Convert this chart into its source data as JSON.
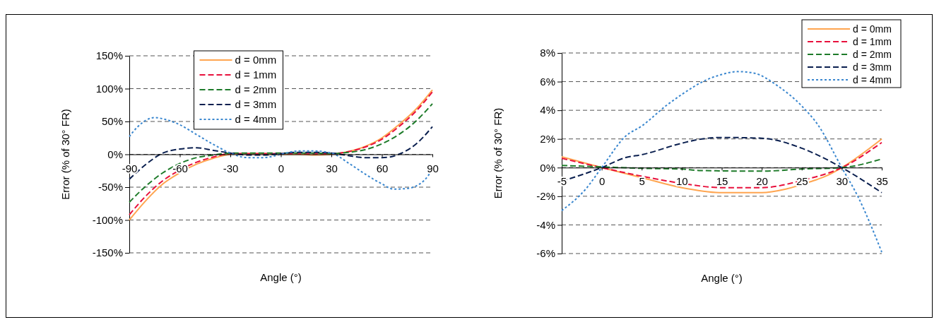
{
  "chart_data": [
    {
      "type": "line",
      "xlabel": "Angle (°)",
      "ylabel": "Error (% of 30° FR)",
      "xlim": [
        -90,
        90
      ],
      "xticks": [
        -90,
        -60,
        -30,
        0,
        30,
        60,
        90
      ],
      "ylim": [
        -150,
        150
      ],
      "yticks": [
        {
          "value": -150,
          "label": "-150%"
        },
        {
          "value": -100,
          "label": "-100%"
        },
        {
          "value": -50,
          "label": "-50%"
        },
        {
          "value": 0,
          "label": "0%"
        },
        {
          "value": 50,
          "label": "50%"
        },
        {
          "value": 100,
          "label": "100%"
        },
        {
          "value": 150,
          "label": "150%"
        }
      ],
      "grid": "y",
      "legend": "top",
      "marker": "none",
      "series": [
        {
          "name": "d = 0mm",
          "color": "#ffa550",
          "line_style": "solid",
          "x": [
            -90,
            -80,
            -70,
            -60,
            -50,
            -40,
            -30,
            -20,
            -10,
            0,
            10,
            20,
            30,
            40,
            50,
            60,
            70,
            80,
            90
          ],
          "values": [
            -100,
            -70,
            -45,
            -28,
            -15,
            -6,
            0,
            1,
            1,
            0,
            0,
            -1,
            0,
            4,
            12,
            25,
            45,
            68,
            98
          ]
        },
        {
          "name": "d = 1mm",
          "color": "#e8103c",
          "line_style": "dashed",
          "x": [
            -90,
            -80,
            -70,
            -60,
            -50,
            -40,
            -30,
            -20,
            -10,
            0,
            10,
            20,
            30,
            40,
            50,
            60,
            70,
            80,
            90
          ],
          "values": [
            -92,
            -63,
            -40,
            -24,
            -12,
            -4,
            1,
            1,
            1,
            1,
            1,
            1,
            1,
            4,
            11,
            23,
            42,
            65,
            95
          ]
        },
        {
          "name": "d = 2mm",
          "color": "#1e7b2a",
          "line_style": "dashed",
          "x": [
            -90,
            -80,
            -70,
            -60,
            -50,
            -40,
            -30,
            -20,
            -10,
            0,
            10,
            20,
            30,
            40,
            50,
            60,
            70,
            80,
            90
          ],
          "values": [
            -73,
            -48,
            -28,
            -14,
            -5,
            -1,
            2,
            2,
            2,
            2,
            2,
            2,
            1,
            3,
            7,
            16,
            30,
            50,
            77
          ]
        },
        {
          "name": "d = 3mm",
          "color": "#0a1f4f",
          "line_style": "dashed",
          "x": [
            -90,
            -80,
            -70,
            -60,
            -50,
            -40,
            -30,
            -20,
            -10,
            0,
            10,
            20,
            30,
            40,
            50,
            60,
            65,
            70,
            80,
            90
          ],
          "values": [
            -38,
            -15,
            2,
            8,
            10,
            6,
            2,
            -1,
            -1,
            1,
            3,
            3,
            2,
            -2,
            -5,
            -5,
            -4,
            0,
            15,
            42
          ]
        },
        {
          "name": "d = 4mm",
          "color": "#3a87cf",
          "line_style": "dotted",
          "x": [
            -90,
            -85,
            -80,
            -75,
            -70,
            -60,
            -50,
            -40,
            -30,
            -20,
            -10,
            0,
            10,
            20,
            30,
            40,
            50,
            60,
            67,
            75,
            85,
            90
          ],
          "values": [
            27,
            42,
            52,
            56,
            54,
            45,
            30,
            15,
            2,
            -5,
            -5,
            0,
            5,
            5,
            2,
            -13,
            -30,
            -45,
            -53,
            -52,
            -40,
            -23
          ]
        }
      ]
    },
    {
      "type": "line",
      "xlabel": "Angle (°)",
      "ylabel": "Error (% of 30° FR)",
      "xlim": [
        -5,
        35
      ],
      "xticks": [
        -5,
        0,
        5,
        10,
        15,
        20,
        25,
        30,
        35
      ],
      "ylim": [
        -6,
        8
      ],
      "yticks": [
        {
          "value": -6,
          "label": "-6%"
        },
        {
          "value": -4,
          "label": "-4%"
        },
        {
          "value": -2,
          "label": "-2%"
        },
        {
          "value": 0,
          "label": "0%"
        },
        {
          "value": 2,
          "label": "2%"
        },
        {
          "value": 4,
          "label": "4%"
        },
        {
          "value": 6,
          "label": "6%"
        },
        {
          "value": 8,
          "label": "8%"
        }
      ],
      "grid": "y",
      "legend": "top right",
      "marker": "none",
      "series": [
        {
          "name": "d = 0mm",
          "color": "#ffa550",
          "line_style": "solid",
          "x": [
            -5,
            0,
            5,
            10,
            15,
            20,
            23,
            26,
            28,
            30,
            35
          ],
          "values": [
            0.75,
            0,
            -0.7,
            -1.4,
            -1.75,
            -1.75,
            -1.5,
            -1.0,
            -0.6,
            0,
            2
          ]
        },
        {
          "name": "d = 1mm",
          "color": "#e8103c",
          "line_style": "dashed",
          "x": [
            -5,
            0,
            5,
            10,
            15,
            20,
            25,
            30,
            35
          ],
          "values": [
            0.65,
            0,
            -0.6,
            -1.1,
            -1.4,
            -1.4,
            -0.9,
            0,
            1.75
          ]
        },
        {
          "name": "d = 2mm",
          "color": "#1e7b2a",
          "line_style": "dashed",
          "x": [
            -5,
            0,
            5,
            10,
            12,
            20,
            25,
            30,
            35
          ],
          "values": [
            0.15,
            0.05,
            -0.05,
            -0.1,
            -0.2,
            -0.25,
            -0.1,
            0,
            0.6
          ]
        },
        {
          "name": "d = 3mm",
          "color": "#0a1f4f",
          "line_style": "dashed",
          "x": [
            -5,
            0,
            3,
            5,
            10,
            12,
            15,
            20,
            25,
            28,
            30,
            35
          ],
          "values": [
            -0.95,
            0,
            0.7,
            0.9,
            1.7,
            1.95,
            2.1,
            2.05,
            1.35,
            0.6,
            0,
            -1.75
          ]
        },
        {
          "name": "d = 4mm",
          "color": "#3a87cf",
          "line_style": "dotted",
          "x": [
            -5,
            -2,
            0,
            3,
            5,
            8,
            10,
            13,
            15,
            17,
            19,
            22,
            25,
            27,
            30,
            32,
            35
          ],
          "values": [
            -3,
            -1.5,
            0,
            2.2,
            2.9,
            4.3,
            5.1,
            6.1,
            6.5,
            6.7,
            6.6,
            5.7,
            4.3,
            3,
            0,
            -2,
            -5.9
          ]
        }
      ]
    }
  ]
}
